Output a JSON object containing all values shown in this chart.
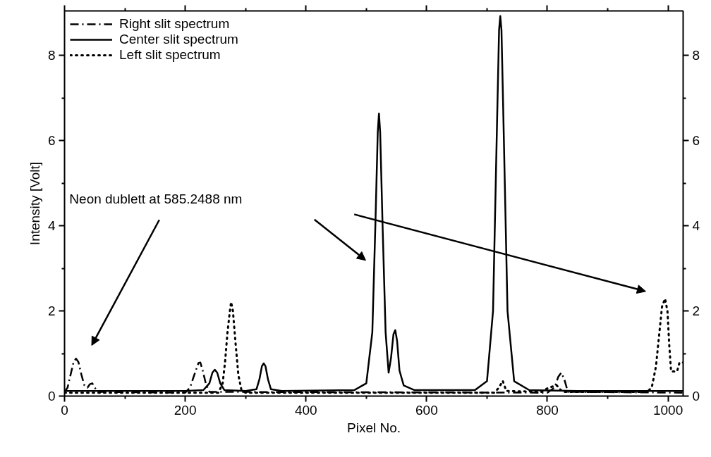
{
  "chart_data": {
    "type": "line",
    "xlabel": "Pixel No.",
    "ylabel": "Intensity [Volt]",
    "annotations": [
      "Neon dublett at 585.2488 nm"
    ],
    "xlim": [
      0,
      1025
    ],
    "xticks": [
      0,
      200,
      400,
      600,
      800,
      1000
    ],
    "ylim": [
      0,
      9.05
    ],
    "yticks": [
      0,
      2,
      4,
      6,
      8
    ],
    "y2lim": [
      0,
      9.05
    ],
    "y2ticks": [
      0,
      2,
      4,
      6,
      8
    ],
    "legend": "top left",
    "marker": "none",
    "series": [
      {
        "name": "Right slit spectrum",
        "color": "#000000",
        "line_style": "dashdot",
        "x": [
          0,
          5,
          10,
          15,
          19,
          23,
          28,
          33,
          38,
          42,
          46,
          50,
          55,
          200,
          208,
          215,
          222,
          225,
          229,
          234,
          240,
          800,
          812,
          818,
          823,
          828,
          834,
          1025
        ],
        "values": [
          0.1,
          0.2,
          0.5,
          0.8,
          0.88,
          0.8,
          0.5,
          0.25,
          0.2,
          0.28,
          0.3,
          0.2,
          0.1,
          0.08,
          0.2,
          0.5,
          0.78,
          0.79,
          0.6,
          0.3,
          0.1,
          0.08,
          0.2,
          0.45,
          0.55,
          0.4,
          0.1,
          0.08
        ]
      },
      {
        "name": "Center slit spectrum",
        "color": "#000000",
        "line_style": "solid",
        "x": [
          0,
          200,
          230,
          240,
          245,
          249,
          253,
          258,
          265,
          300,
          318,
          323,
          327,
          330,
          333,
          337,
          342,
          360,
          480,
          500,
          510,
          515,
          519,
          521,
          523,
          527,
          532,
          537,
          541,
          545,
          548,
          551,
          555,
          562,
          580,
          680,
          700,
          710,
          716,
          720,
          722,
          724,
          728,
          734,
          745,
          770,
          850,
          1025
        ],
        "values": [
          0.12,
          0.12,
          0.14,
          0.3,
          0.55,
          0.62,
          0.55,
          0.3,
          0.14,
          0.12,
          0.16,
          0.4,
          0.7,
          0.77,
          0.7,
          0.4,
          0.16,
          0.12,
          0.14,
          0.3,
          1.5,
          4.0,
          6.2,
          6.64,
          6.2,
          4.0,
          1.5,
          0.55,
          0.9,
          1.45,
          1.55,
          1.3,
          0.6,
          0.25,
          0.14,
          0.14,
          0.35,
          2.0,
          6.0,
          8.6,
          8.93,
          8.6,
          6.0,
          2.0,
          0.35,
          0.14,
          0.12,
          0.12
        ]
      },
      {
        "name": "Left slit spectrum",
        "color": "#000000",
        "line_style": "dotted",
        "x": [
          0,
          255,
          262,
          266,
          270,
          274,
          276,
          279,
          283,
          288,
          293,
          300,
          712,
          720,
          726,
          732,
          790,
          800,
          815,
          825,
          965,
          973,
          980,
          985,
          990,
          995,
          999,
          1002,
          1005,
          1015,
          1019,
          1025
        ],
        "values": [
          0.08,
          0.08,
          0.3,
          0.8,
          1.5,
          2.0,
          2.21,
          2.0,
          1.3,
          0.5,
          0.15,
          0.08,
          0.08,
          0.2,
          0.36,
          0.12,
          0.1,
          0.18,
          0.26,
          0.1,
          0.1,
          0.2,
          0.7,
          1.4,
          2.1,
          2.29,
          2.0,
          1.2,
          0.58,
          0.58,
          0.79,
          0.79
        ]
      }
    ]
  }
}
